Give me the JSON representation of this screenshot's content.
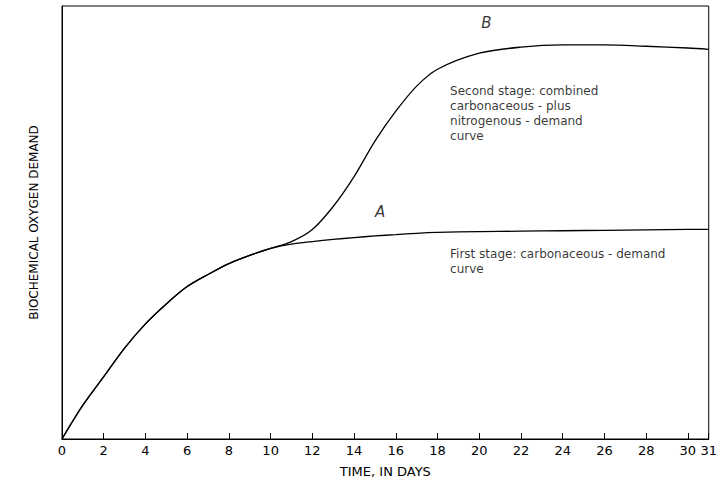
{
  "chart_data": {
    "type": "line",
    "x_label": "TIME, IN DAYS",
    "y_label": "BIOCHEMICAL OXYGEN DEMAND",
    "x": [
      0,
      1,
      2,
      3,
      4,
      5,
      6,
      7,
      8,
      9,
      10,
      11,
      12,
      13,
      14,
      15,
      16,
      17,
      18,
      20,
      22,
      24,
      26,
      28,
      30,
      31
    ],
    "series": [
      {
        "color": "#000000",
        "line_style": "solid",
        "values": [
          0,
          7.8,
          14.4,
          21,
          26.6,
          31.2,
          35.2,
          38,
          40.5,
          42.4,
          44,
          45.6,
          48.4,
          53.7,
          60.6,
          68.8,
          75.7,
          81.5,
          85.4,
          89.1,
          90.5,
          91,
          91,
          90.7,
          90.3,
          90
        ]
      },
      {
        "color": "#000000",
        "line_style": "solid",
        "values": [
          0,
          7.8,
          14.4,
          21,
          26.6,
          31.2,
          35.2,
          38,
          40.5,
          42.4,
          44,
          45,
          45.6,
          46.1,
          46.5,
          46.9,
          47.2,
          47.5,
          47.7,
          47.9,
          48,
          48.1,
          48.2,
          48.3,
          48.4,
          48.4
        ]
      }
    ],
    "annotations": [
      {
        "text": "B",
        "x": 20.1,
        "y": 96
      },
      {
        "text": "Second stage: combined carbonaceous - plus nitrogenous - demand curve",
        "x": 18.6,
        "y": 82
      },
      {
        "text": "A",
        "x": 15,
        "y": 52.5
      },
      {
        "text": "First stage: carbonaceous - demand curve",
        "x": 18.6,
        "y": 44.5
      }
    ],
    "xlim": [
      0,
      31
    ],
    "xticks": [
      0,
      2,
      4,
      6,
      8,
      10,
      12,
      14,
      16,
      18,
      20,
      22,
      24,
      26,
      28,
      30
    ],
    "ylim": [
      0,
      100
    ],
    "tick_labels": "x",
    "grid": false
  }
}
